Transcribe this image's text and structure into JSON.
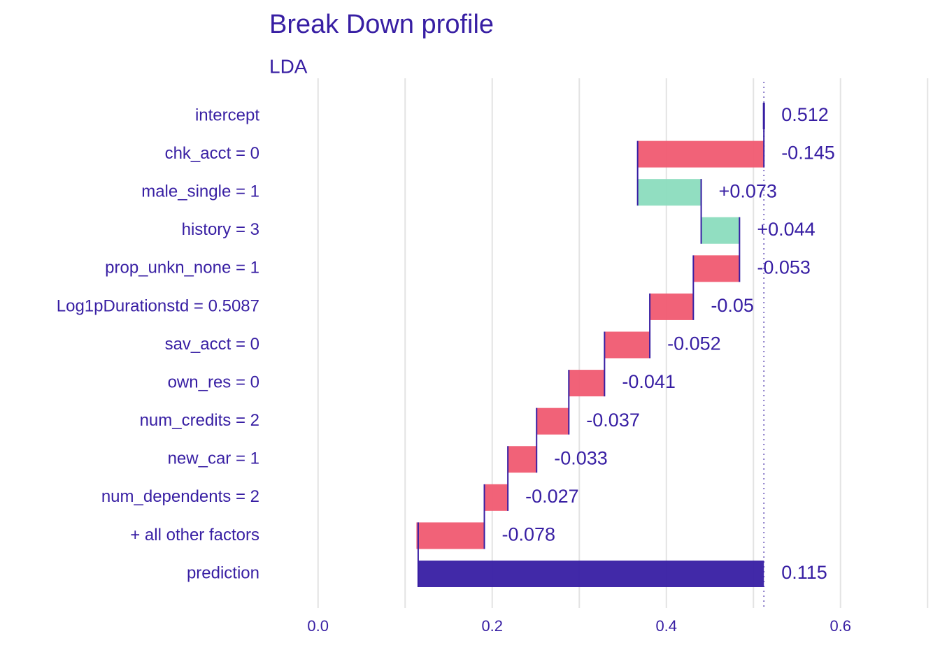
{
  "chart_data": {
    "type": "breakdown",
    "title": "Break Down profile",
    "subtitle": "LDA",
    "categories": [
      "intercept",
      "chk_acct = 0",
      "male_single = 1",
      "history = 3",
      "prop_unkn_none = 1",
      "Log1pDurationstd = 0.5087",
      "sav_acct = 0",
      "own_res = 0",
      "num_credits = 2",
      "new_car = 1",
      "num_dependents = 2",
      "+ all other factors",
      "prediction"
    ],
    "values": [
      0.512,
      -0.145,
      0.073,
      0.044,
      -0.053,
      -0.05,
      -0.052,
      -0.041,
      -0.037,
      -0.033,
      -0.027,
      -0.078,
      0.115
    ],
    "value_labels": [
      "0.512",
      "-0.145",
      "+0.073",
      "+0.044",
      "-0.053",
      "-0.05",
      "-0.052",
      "-0.041",
      "-0.037",
      "-0.033",
      "-0.027",
      "-0.078",
      "0.115"
    ],
    "colors": {
      "positive": "#8bdcbe",
      "negative": "#f05a71",
      "prediction": "#371ea3",
      "line": "#371ea3"
    },
    "xlim": [
      -0.056,
      0.703
    ],
    "xticks": [
      {
        "value": 0,
        "label": "0.0"
      },
      {
        "value": 0.2,
        "label": "0.2"
      },
      {
        "value": 0.4,
        "label": "0.4"
      },
      {
        "value": 0.6,
        "label": "0.6"
      }
    ],
    "minor_grid": [
      0.1,
      0.3,
      0.5,
      0.7
    ],
    "grid": true
  }
}
